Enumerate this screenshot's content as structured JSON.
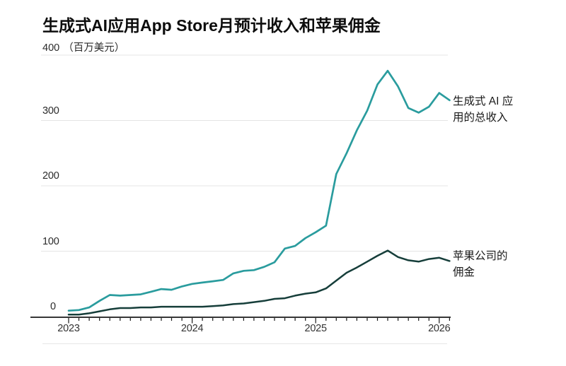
{
  "title": "生成式AI应用App Store月预计收入和苹果佣金",
  "colors": {
    "revenue": "#2a9c9e",
    "commission": "#163e3a",
    "grid": "#e4e4e4",
    "axis": "#1a1a1a"
  },
  "annotations": {
    "revenue_line1": "生成式 AI 应",
    "revenue_line2": "用的总收入",
    "commission_line1": "苹果公司的",
    "commission_line2": "佣金"
  },
  "chart_data": {
    "type": "line",
    "title": "生成式AI应用App Store月预计收入和苹果佣金",
    "unit_label": "（百万美元）",
    "unit": "百万美元",
    "ylim": [
      0,
      400
    ],
    "grid": "horizontal",
    "legend_position": "right-annotations",
    "x": [
      "2023-01",
      "2023-02",
      "2023-03",
      "2023-04",
      "2023-05",
      "2023-06",
      "2023-07",
      "2023-08",
      "2023-09",
      "2023-10",
      "2023-11",
      "2023-12",
      "2024-01",
      "2024-02",
      "2024-03",
      "2024-04",
      "2024-05",
      "2024-06",
      "2024-07",
      "2024-08",
      "2024-09",
      "2024-10",
      "2024-11",
      "2024-12",
      "2025-01",
      "2025-02",
      "2025-03",
      "2025-04",
      "2025-05",
      "2025-06",
      "2025-07",
      "2025-08",
      "2025-09",
      "2025-10",
      "2025-11",
      "2025-12",
      "2026-01",
      "2026-02"
    ],
    "xtick_labels": [
      "2023",
      "2024",
      "2025",
      "2026"
    ],
    "ytick_labels": [
      "0",
      "100",
      "200",
      "300",
      "400"
    ],
    "series": [
      {
        "name": "生成式 AI 应用的总收入",
        "color": "#2a9c9e",
        "values": [
          9,
          10,
          14,
          24,
          33,
          32,
          33,
          34,
          38,
          42,
          41,
          46,
          50,
          52,
          54,
          56,
          66,
          70,
          71,
          76,
          83,
          104,
          108,
          120,
          129,
          139,
          218,
          250,
          285,
          315,
          355,
          376,
          352,
          319,
          312,
          321,
          342,
          331
        ]
      },
      {
        "name": "苹果公司的佣金",
        "color": "#163e3a",
        "values": [
          3,
          3,
          5,
          8,
          11,
          13,
          13,
          14,
          14,
          15,
          15,
          15,
          15,
          15,
          16,
          17,
          19,
          20,
          22,
          24,
          27,
          28,
          32,
          35,
          37,
          43,
          55,
          67,
          75,
          84,
          93,
          101,
          91,
          86,
          84,
          88,
          90,
          85
        ]
      }
    ]
  }
}
